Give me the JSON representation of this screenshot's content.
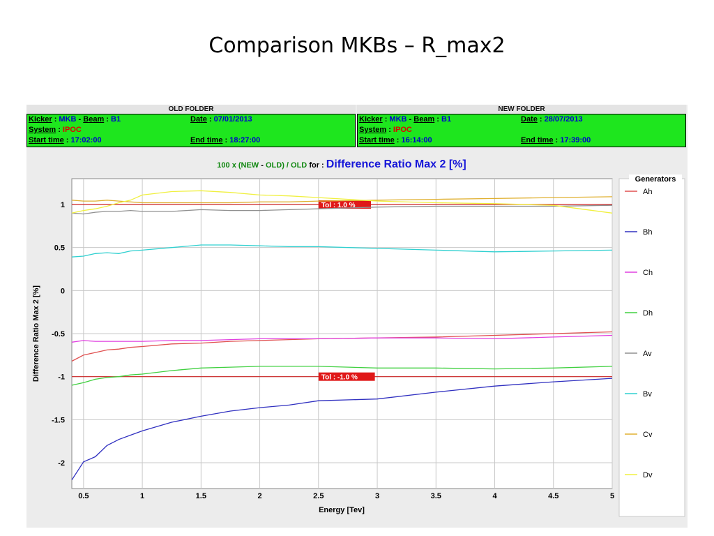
{
  "slide": {
    "title": "Comparison MKBs – R_max2"
  },
  "old_folder": {
    "header": "OLD FOLDER",
    "kicker_label": "Kicker",
    "kicker_value": "MKB",
    "beam_label": "Beam",
    "beam_value": "B1",
    "date_label": "Date",
    "date_value": "07/01/2013",
    "system_label": "System",
    "system_value": "IPOC",
    "start_label": "Start time",
    "start_value": "17:02:00",
    "end_label": "End time",
    "end_value": "18:27:00"
  },
  "new_folder": {
    "header": "NEW FOLDER",
    "kicker_label": "Kicker",
    "kicker_value": "MKB",
    "beam_label": "Beam",
    "beam_value": "B1",
    "date_label": "Date",
    "date_value": "28/07/2013",
    "system_label": "System",
    "system_value": "IPOC",
    "start_label": "Start time",
    "start_value": "16:14:00",
    "end_label": "End time",
    "end_value": "17:39:00"
  },
  "chart_data": {
    "type": "line",
    "title_prefix_new": "100 x (NEW",
    "title_prefix_dash": " - ",
    "title_prefix_old": "OLD) / OLD",
    "title_prefix_for": " for : ",
    "title": "Difference Ratio Max 2 [%]",
    "xlabel": "Energy [Tev]",
    "ylabel": "Difference Ratio Max 2 [%]",
    "xlim": [
      0.4,
      5
    ],
    "ylim": [
      -2.3,
      1.3
    ],
    "xticks": [
      0.5,
      1,
      1.5,
      2,
      2.5,
      3,
      3.5,
      4,
      4.5,
      5
    ],
    "xtick_labels": [
      "0.5",
      "1",
      "1.5",
      "2",
      "2.5",
      "3",
      "3.5",
      "4",
      "4.5",
      "5"
    ],
    "yticks": [
      1,
      0.5,
      0,
      -0.5,
      -1,
      -1.5,
      -2
    ],
    "ytick_labels": [
      "1",
      "0.5",
      "0",
      "-0.5",
      "-1",
      "-1.5",
      "-2"
    ],
    "grid": true,
    "legend_title": "Generators",
    "legend_position": "right",
    "tolerances": [
      {
        "value": 1.0,
        "label": "Tol :  1.0 %",
        "x": 2.5
      },
      {
        "value": -1.0,
        "label": "Tol :  -1.0 %",
        "x": 2.5
      }
    ],
    "tolerance_color": "#cc2222",
    "x": [
      0.4,
      0.5,
      0.6,
      0.7,
      0.8,
      0.9,
      1.0,
      1.25,
      1.5,
      1.75,
      2.0,
      2.25,
      2.5,
      3.0,
      3.5,
      4.0,
      4.5,
      5.0
    ],
    "series": [
      {
        "name": "Ah",
        "color": "#e05050",
        "values": [
          -0.82,
          -0.75,
          -0.72,
          -0.69,
          -0.68,
          -0.66,
          -0.65,
          -0.62,
          -0.61,
          -0.59,
          -0.58,
          -0.57,
          -0.56,
          -0.55,
          -0.54,
          -0.52,
          -0.5,
          -0.48
        ]
      },
      {
        "name": "Bh",
        "color": "#3030c0",
        "values": [
          -2.2,
          -1.99,
          -1.93,
          -1.8,
          -1.73,
          -1.68,
          -1.63,
          -1.53,
          -1.46,
          -1.4,
          -1.36,
          -1.33,
          -1.28,
          -1.26,
          -1.18,
          -1.11,
          -1.06,
          -1.02
        ]
      },
      {
        "name": "Ch",
        "color": "#e040e0",
        "values": [
          -0.6,
          -0.58,
          -0.59,
          -0.59,
          -0.59,
          -0.59,
          -0.59,
          -0.58,
          -0.58,
          -0.57,
          -0.56,
          -0.56,
          -0.56,
          -0.55,
          -0.55,
          -0.56,
          -0.54,
          -0.52
        ]
      },
      {
        "name": "Dh",
        "color": "#40d040",
        "values": [
          -1.1,
          -1.07,
          -1.03,
          -1.01,
          -1.0,
          -0.98,
          -0.97,
          -0.93,
          -0.9,
          -0.89,
          -0.88,
          -0.88,
          -0.88,
          -0.9,
          -0.9,
          -0.91,
          -0.9,
          -0.88
        ]
      },
      {
        "name": "Av",
        "color": "#909090",
        "values": [
          0.9,
          0.89,
          0.91,
          0.92,
          0.92,
          0.93,
          0.92,
          0.92,
          0.94,
          0.93,
          0.93,
          0.94,
          0.95,
          0.97,
          0.98,
          0.98,
          0.98,
          0.99
        ]
      },
      {
        "name": "Bv",
        "color": "#30d0d0",
        "values": [
          0.39,
          0.4,
          0.43,
          0.44,
          0.43,
          0.46,
          0.47,
          0.5,
          0.53,
          0.53,
          0.52,
          0.51,
          0.51,
          0.49,
          0.47,
          0.45,
          0.46,
          0.47
        ]
      },
      {
        "name": "Cv",
        "color": "#e0b030",
        "values": [
          1.05,
          1.04,
          1.04,
          1.05,
          1.04,
          1.03,
          1.02,
          1.02,
          1.02,
          1.02,
          1.03,
          1.03,
          1.04,
          1.05,
          1.06,
          1.07,
          1.08,
          1.09
        ]
      },
      {
        "name": "Dv",
        "color": "#f0f040",
        "values": [
          0.9,
          0.93,
          0.95,
          0.98,
          1.02,
          1.05,
          1.11,
          1.15,
          1.16,
          1.14,
          1.11,
          1.1,
          1.08,
          1.04,
          1.02,
          1.01,
          0.99,
          0.9
        ]
      }
    ]
  }
}
